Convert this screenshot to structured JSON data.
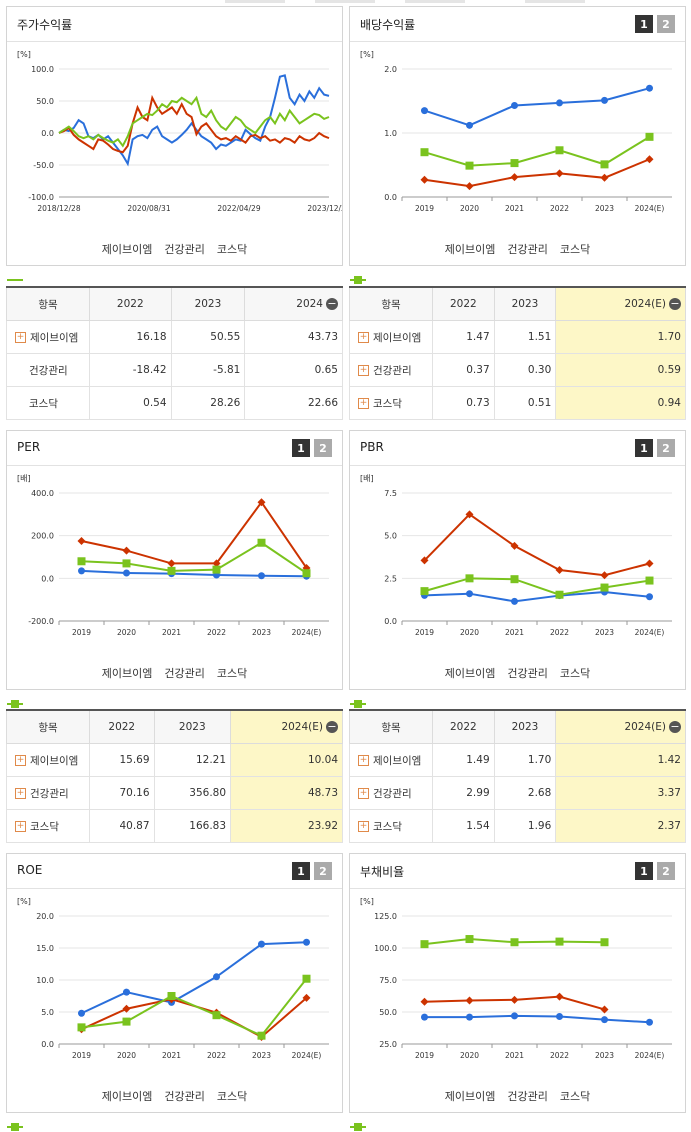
{
  "legend": [
    "제이브이엠",
    "건강관리",
    "코스닥"
  ],
  "colors": {
    "s0": "#2a6fdb",
    "s1": "#cc3300",
    "s2": "#7ac31e"
  },
  "panels": {
    "p1": {
      "title": "주가수익률",
      "unit": "[%]"
    },
    "p2": {
      "title": "배당수익률",
      "unit": "[%]",
      "pages": [
        "1",
        "2"
      ]
    },
    "p3": {
      "title": "PER",
      "unit": "[배]",
      "pages": [
        "1",
        "2"
      ]
    },
    "p4": {
      "title": "PBR",
      "unit": "[배]",
      "pages": [
        "1",
        "2"
      ]
    },
    "p5": {
      "title": "ROE",
      "unit": "[%]",
      "pages": [
        "1",
        "2"
      ]
    },
    "p6": {
      "title": "부채비율",
      "unit": "[%]",
      "pages": [
        "1",
        "2"
      ]
    }
  },
  "tables": {
    "t1": {
      "header": [
        "항목",
        "2022",
        "2023",
        "2024"
      ],
      "rows": [
        {
          "label": "제이브이엠",
          "plus": true,
          "v": [
            "16.18",
            "50.55",
            "43.73"
          ]
        },
        {
          "label": "건강관리",
          "plus": false,
          "v": [
            "-18.42",
            "-5.81",
            "0.65"
          ]
        },
        {
          "label": "코스닥",
          "plus": false,
          "v": [
            "0.54",
            "28.26",
            "22.66"
          ]
        }
      ]
    },
    "t2": {
      "header": [
        "항목",
        "2022",
        "2023",
        "2024(E)"
      ],
      "rows": [
        {
          "label": "제이브이엠",
          "plus": true,
          "v": [
            "1.47",
            "1.51",
            "1.70"
          ]
        },
        {
          "label": "건강관리",
          "plus": true,
          "v": [
            "0.37",
            "0.30",
            "0.59"
          ]
        },
        {
          "label": "코스닥",
          "plus": true,
          "v": [
            "0.73",
            "0.51",
            "0.94"
          ]
        }
      ]
    },
    "t3": {
      "header": [
        "항목",
        "2022",
        "2023",
        "2024(E)"
      ],
      "rows": [
        {
          "label": "제이브이엠",
          "plus": true,
          "v": [
            "15.69",
            "12.21",
            "10.04"
          ]
        },
        {
          "label": "건강관리",
          "plus": true,
          "v": [
            "70.16",
            "356.80",
            "48.73"
          ]
        },
        {
          "label": "코스닥",
          "plus": true,
          "v": [
            "40.87",
            "166.83",
            "23.92"
          ]
        }
      ]
    },
    "t4": {
      "header": [
        "항목",
        "2022",
        "2023",
        "2024(E)"
      ],
      "rows": [
        {
          "label": "제이브이엠",
          "plus": true,
          "v": [
            "1.49",
            "1.70",
            "1.42"
          ]
        },
        {
          "label": "건강관리",
          "plus": true,
          "v": [
            "2.99",
            "2.68",
            "3.37"
          ]
        },
        {
          "label": "코스닥",
          "plus": true,
          "v": [
            "1.54",
            "1.96",
            "2.37"
          ]
        }
      ]
    }
  },
  "chart_data": [
    {
      "type": "line",
      "title": "주가수익률",
      "ylabel": "[%]",
      "ylim": [
        -100,
        100
      ],
      "yticks": [
        "100.0",
        "50.0",
        "0.0",
        "-50.0",
        "-100.0"
      ],
      "xticks": [
        "2018/12/28",
        "2020/08/31",
        "2022/04/29",
        "2023/12/28"
      ],
      "series": [
        {
          "name": "제이브이엠",
          "values": [
            0,
            5,
            3,
            8,
            20,
            15,
            -5,
            -8,
            -3,
            -10,
            -5,
            -15,
            -25,
            -35,
            -48,
            -10,
            -5,
            -3,
            -8,
            5,
            10,
            -5,
            -10,
            -15,
            -10,
            -3,
            5,
            15,
            5,
            -5,
            -10,
            -15,
            -25,
            -18,
            -20,
            -15,
            -10,
            -12,
            5,
            -2,
            -8,
            -12,
            10,
            25,
            55,
            88,
            90,
            55,
            45,
            60,
            50,
            65,
            55,
            70,
            60,
            58
          ]
        },
        {
          "name": "건강관리",
          "values": [
            0,
            3,
            8,
            -3,
            -10,
            -15,
            -20,
            -25,
            -10,
            -12,
            -18,
            -25,
            -28,
            -30,
            -20,
            15,
            40,
            25,
            20,
            55,
            40,
            30,
            35,
            40,
            30,
            45,
            30,
            25,
            -2,
            10,
            15,
            5,
            -5,
            -10,
            -8,
            -12,
            -5,
            -10,
            -15,
            -5,
            -3,
            -8,
            -5,
            -12,
            -10,
            -15,
            -8,
            -10,
            -15,
            -5,
            -10,
            -12,
            -8,
            0,
            -5,
            -8
          ]
        },
        {
          "name": "코스닥",
          "values": [
            0,
            5,
            10,
            3,
            -5,
            -8,
            -5,
            -10,
            -3,
            -8,
            -12,
            -15,
            -10,
            -20,
            -5,
            15,
            20,
            25,
            30,
            28,
            35,
            45,
            40,
            50,
            48,
            55,
            50,
            45,
            55,
            30,
            25,
            35,
            20,
            10,
            5,
            15,
            25,
            20,
            10,
            5,
            0,
            10,
            20,
            25,
            15,
            30,
            20,
            35,
            25,
            15,
            20,
            25,
            30,
            28,
            22,
            25
          ]
        }
      ]
    },
    {
      "type": "line",
      "title": "배당수익률",
      "ylabel": "[%]",
      "ylim": [
        0,
        2
      ],
      "yticks": [
        "2.0",
        "1.0",
        "0.0"
      ],
      "categories": [
        "2019",
        "2020",
        "2021",
        "2022",
        "2023",
        "2024(E)"
      ],
      "series": [
        {
          "name": "제이브이엠",
          "values": [
            1.35,
            1.12,
            1.43,
            1.47,
            1.51,
            1.7
          ]
        },
        {
          "name": "건강관리",
          "values": [
            0.27,
            0.17,
            0.31,
            0.37,
            0.3,
            0.59
          ]
        },
        {
          "name": "코스닥",
          "values": [
            0.7,
            0.49,
            0.53,
            0.73,
            0.51,
            0.94
          ]
        }
      ]
    },
    {
      "type": "line",
      "title": "PER",
      "ylabel": "[배]",
      "ylim": [
        -200,
        400
      ],
      "yticks": [
        "400.0",
        "200.0",
        "0.0",
        "-200.0"
      ],
      "categories": [
        "2019",
        "2020",
        "2021",
        "2022",
        "2023",
        "2024(E)"
      ],
      "series": [
        {
          "name": "제이브이엠",
          "values": [
            35,
            25,
            22,
            15.69,
            12.21,
            10.04
          ]
        },
        {
          "name": "건강관리",
          "values": [
            175,
            130,
            70,
            70.16,
            356.8,
            48.73
          ]
        },
        {
          "name": "코스닥",
          "values": [
            80,
            70,
            35,
            40.87,
            166.83,
            23.92
          ]
        }
      ]
    },
    {
      "type": "line",
      "title": "PBR",
      "ylabel": "[배]",
      "ylim": [
        0,
        7.5
      ],
      "yticks": [
        "7.5",
        "5.0",
        "2.5",
        "0.0"
      ],
      "categories": [
        "2019",
        "2020",
        "2021",
        "2022",
        "2023",
        "2024(E)"
      ],
      "series": [
        {
          "name": "제이브이엠",
          "values": [
            1.5,
            1.6,
            1.15,
            1.49,
            1.7,
            1.42
          ]
        },
        {
          "name": "건강관리",
          "values": [
            3.55,
            6.25,
            4.4,
            2.99,
            2.68,
            3.37
          ]
        },
        {
          "name": "코스닥",
          "values": [
            1.75,
            2.5,
            2.45,
            1.54,
            1.96,
            2.37
          ]
        }
      ]
    },
    {
      "type": "line",
      "title": "ROE",
      "ylabel": "[%]",
      "ylim": [
        0,
        20
      ],
      "yticks": [
        "20.0",
        "15.0",
        "10.0",
        "5.0",
        "0.0"
      ],
      "categories": [
        "2019",
        "2020",
        "2021",
        "2022",
        "2023",
        "2024(E)"
      ],
      "series": [
        {
          "name": "제이브이엠",
          "values": [
            4.8,
            8.1,
            6.5,
            10.5,
            15.6,
            15.9
          ]
        },
        {
          "name": "건강관리",
          "values": [
            2.3,
            5.5,
            7.0,
            4.9,
            1.1,
            7.2
          ]
        },
        {
          "name": "코스닥",
          "values": [
            2.6,
            3.5,
            7.5,
            4.5,
            1.3,
            10.2
          ]
        }
      ]
    },
    {
      "type": "line",
      "title": "부채비율",
      "ylabel": "[%]",
      "ylim": [
        25,
        125
      ],
      "yticks": [
        "125.0",
        "100.0",
        "75.0",
        "50.0",
        "25.0"
      ],
      "categories": [
        "2019",
        "2020",
        "2021",
        "2022",
        "2023",
        "2024(E)"
      ],
      "series": [
        {
          "name": "제이브이엠",
          "values": [
            46,
            46,
            47,
            46.5,
            44,
            42
          ]
        },
        {
          "name": "건강관리",
          "values": [
            58,
            59,
            59.5,
            62,
            52,
            null
          ]
        },
        {
          "name": "코스닥",
          "values": [
            103,
            107,
            104.5,
            105,
            104.5,
            null
          ]
        }
      ]
    }
  ]
}
